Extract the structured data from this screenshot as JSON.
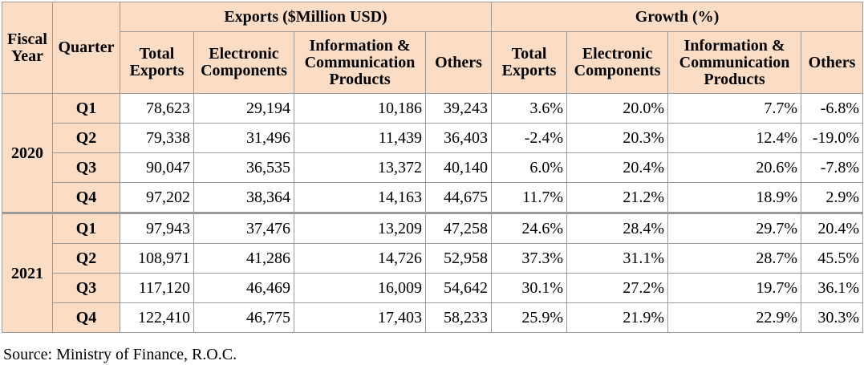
{
  "header": {
    "fiscal_year": "Fiscal Year",
    "quarter": "Quarter",
    "exports_group": "Exports ($Million USD)",
    "growth_group": "Growth (%)",
    "columns": [
      "Total Exports",
      "Electronic Components",
      "Information & Communication Products",
      "Others"
    ]
  },
  "rows": [
    {
      "year": "2020",
      "quarter": "Q1",
      "values": [
        "78,623",
        "29,194",
        "10,186",
        "39,243",
        "3.6%",
        "20.0%",
        "7.7%",
        "-6.8%"
      ]
    },
    {
      "year": "2020",
      "quarter": "Q2",
      "values": [
        "79,338",
        "31,496",
        "11,439",
        "36,403",
        "-2.4%",
        "20.3%",
        "12.4%",
        "-19.0%"
      ]
    },
    {
      "year": "2020",
      "quarter": "Q3",
      "values": [
        "90,047",
        "36,535",
        "13,372",
        "40,140",
        "6.0%",
        "20.4%",
        "20.6%",
        "-7.8%"
      ]
    },
    {
      "year": "2020",
      "quarter": "Q4",
      "values": [
        "97,202",
        "38,364",
        "14,163",
        "44,675",
        "11.7%",
        "21.2%",
        "18.9%",
        "2.9%"
      ]
    },
    {
      "year": "2021",
      "quarter": "Q1",
      "values": [
        "97,943",
        "37,476",
        "13,209",
        "47,258",
        "24.6%",
        "28.4%",
        "29.7%",
        "20.4%"
      ]
    },
    {
      "year": "2021",
      "quarter": "Q2",
      "values": [
        "108,971",
        "41,286",
        "14,726",
        "52,958",
        "37.3%",
        "31.1%",
        "28.7%",
        "45.5%"
      ]
    },
    {
      "year": "2021",
      "quarter": "Q3",
      "values": [
        "117,120",
        "46,469",
        "16,009",
        "54,642",
        "30.1%",
        "27.2%",
        "19.7%",
        "36.1%"
      ]
    },
    {
      "year": "2021",
      "quarter": "Q4",
      "values": [
        "122,410",
        "46,775",
        "17,403",
        "58,233",
        "25.9%",
        "21.9%",
        "22.9%",
        "30.3%"
      ]
    }
  ],
  "source": "Source: Ministry of Finance, R.O.C."
}
